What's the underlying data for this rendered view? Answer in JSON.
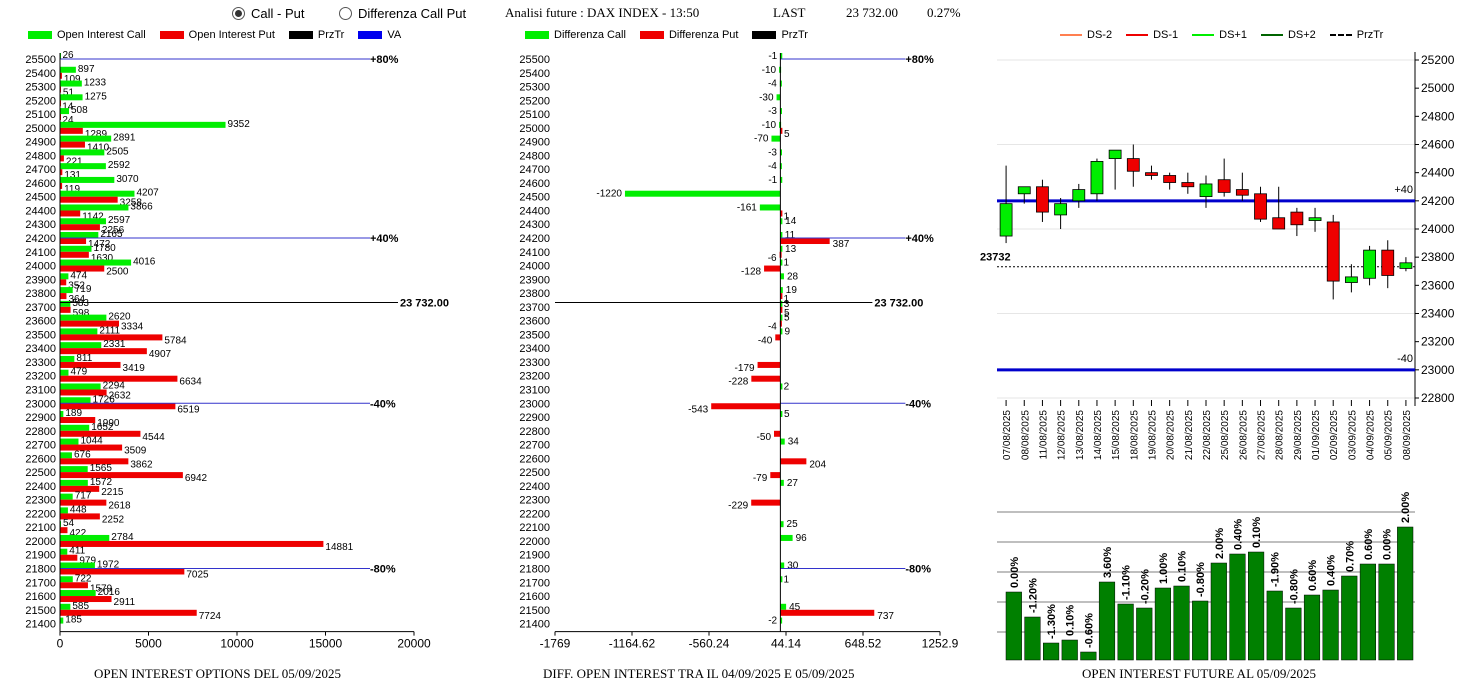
{
  "header": {
    "radio_call_put": "Call - Put",
    "radio_diff": "Differenza Call Put",
    "title": "Analisi future : DAX INDEX - 13:50",
    "last_label": "LAST",
    "last_value": "23 732.00",
    "change": "0.27%"
  },
  "legend1": {
    "call": "Open Interest Call",
    "put": "Open Interest Put",
    "prztr": "PrzTr",
    "va": "VA"
  },
  "legend2": {
    "call": "Differenza Call",
    "put": "Differenza Put",
    "prztr": "PrzTr"
  },
  "legend3": {
    "ds_2": "DS-2",
    "ds_1": "DS-1",
    "ds1": "DS+1",
    "ds2": "DS+2",
    "prztr": "PrzTr"
  },
  "captions": {
    "oi": "OPEN INTEREST OPTIONS DEL 05/09/2025",
    "diff": "DIFF. OPEN INTEREST TRA IL 04/09/2025 E 05/09/2025",
    "future": "OPEN INTEREST FUTURE AL 05/09/2025"
  },
  "chart_data": [
    {
      "type": "bar",
      "orientation": "horizontal",
      "strikes": [
        25500,
        25400,
        25300,
        25200,
        25100,
        25000,
        24900,
        24800,
        24700,
        24600,
        24500,
        24400,
        24300,
        24200,
        24100,
        24000,
        23900,
        23800,
        23700,
        23600,
        23500,
        23400,
        23300,
        23200,
        23100,
        23000,
        22900,
        22800,
        22700,
        22600,
        22500,
        22400,
        22300,
        22200,
        22100,
        22000,
        21900,
        21800,
        21700,
        21600,
        21500,
        21400
      ],
      "series": [
        {
          "name": "Open Interest Call",
          "color": "#00ee00",
          "values": [
            26,
            897,
            1233,
            1275,
            508,
            9352,
            2891,
            2505,
            2592,
            3070,
            4207,
            3866,
            2597,
            2165,
            1780,
            4016,
            474,
            719,
            583,
            2620,
            2111,
            2331,
            811,
            479,
            2294,
            1726,
            189,
            1652,
            1044,
            676,
            1565,
            1572,
            717,
            448,
            54,
            2784,
            411,
            1972,
            722,
            2016,
            585,
            185
          ]
        },
        {
          "name": "Open Interest Put",
          "color": "#ee0000",
          "values": [
            0,
            109,
            51,
            14,
            24,
            1289,
            1410,
            221,
            131,
            119,
            3258,
            1142,
            2256,
            1472,
            1630,
            2500,
            352,
            364,
            598,
            3334,
            5784,
            4907,
            3419,
            6634,
            2632,
            6519,
            1990,
            4544,
            3509,
            3862,
            6942,
            2215,
            2618,
            2252,
            422,
            14881,
            979,
            7025,
            1579,
            2911,
            7724,
            0
          ]
        }
      ],
      "price_line": {
        "value": 23732,
        "label": "23 732.00"
      },
      "levels": [
        {
          "strike": 25500,
          "label": "+80%"
        },
        {
          "strike": 24200,
          "label": "+40%"
        },
        {
          "strike": 23000,
          "label": "-40%"
        },
        {
          "strike": 21800,
          "label": "-80%"
        }
      ],
      "xticks": [
        0,
        5000,
        10000,
        15000,
        20000
      ],
      "xlim": [
        0,
        20000
      ]
    },
    {
      "type": "bar",
      "orientation": "horizontal",
      "strikes": [
        25500,
        25400,
        25300,
        25200,
        25100,
        25000,
        24900,
        24800,
        24700,
        24600,
        24500,
        24400,
        24300,
        24200,
        24100,
        24000,
        23900,
        23800,
        23700,
        23600,
        23500,
        23400,
        23300,
        23200,
        23100,
        23000,
        22900,
        22800,
        22700,
        22600,
        22500,
        22400,
        22300,
        22200,
        22100,
        22000,
        21900,
        21800,
        21700,
        21600,
        21500,
        21400
      ],
      "series": [
        {
          "name": "Differenza Call",
          "color": "#00ee00",
          "values": [
            -1,
            -10,
            -4,
            -30,
            -3,
            -10,
            -70,
            -3,
            -4,
            -1,
            -1220,
            -161,
            14,
            11,
            13,
            1,
            28,
            19,
            3,
            5,
            9,
            0,
            0,
            0,
            2,
            0,
            5,
            0,
            34,
            0,
            0,
            27,
            0,
            0,
            25,
            96,
            0,
            30,
            1,
            0,
            45,
            -2
          ]
        },
        {
          "name": "Differenza Put",
          "color": "#ee0000",
          "values": [
            0,
            0,
            0,
            0,
            0,
            5,
            0,
            0,
            0,
            0,
            0,
            1,
            0,
            387,
            -6,
            -128,
            0,
            1,
            5,
            -4,
            -40,
            0,
            -179,
            -228,
            0,
            -543,
            0,
            -50,
            0,
            204,
            -79,
            0,
            -229,
            0,
            0,
            0,
            0,
            0,
            0,
            0,
            737,
            0
          ]
        }
      ],
      "price_line": {
        "value": 23732,
        "label": "23 732.00"
      },
      "levels": [
        {
          "strike": 25500,
          "label": "+80%"
        },
        {
          "strike": 24200,
          "label": "+40%"
        },
        {
          "strike": 23000,
          "label": "-40%"
        },
        {
          "strike": 21800,
          "label": "-80%"
        }
      ],
      "xticks": [
        "-1769",
        "-1164.62",
        "-560.24",
        "44.14",
        "648.52",
        "1252.9"
      ],
      "xlim": [
        -1769,
        1252.9
      ]
    },
    {
      "type": "candlestick",
      "dates": [
        "07/08/2025",
        "08/08/2025",
        "11/08/2025",
        "12/08/2025",
        "13/08/2025",
        "14/08/2025",
        "15/08/2025",
        "18/08/2025",
        "19/08/2025",
        "20/08/2025",
        "21/08/2025",
        "22/08/2025",
        "25/08/2025",
        "26/08/2025",
        "27/08/2025",
        "28/08/2025",
        "29/08/2025",
        "01/09/2025",
        "02/09/2025",
        "03/09/2025",
        "04/09/2025",
        "05/09/2025",
        "08/09/2025"
      ],
      "open": [
        23950,
        24250,
        24300,
        24100,
        24200,
        24250,
        24500,
        24500,
        24400,
        24380,
        24330,
        24230,
        24350,
        24280,
        24250,
        24080,
        24120,
        24060,
        24050,
        23620,
        23650,
        23850,
        23720
      ],
      "high": [
        24450,
        24300,
        24350,
        24220,
        24320,
        24500,
        24550,
        24600,
        24450,
        24400,
        24400,
        24380,
        24500,
        24400,
        24300,
        24300,
        24150,
        24150,
        24100,
        23750,
        23880,
        23920,
        23800
      ],
      "low": [
        23900,
        24180,
        24050,
        24000,
        24150,
        24200,
        24280,
        24300,
        24350,
        24280,
        24250,
        24150,
        24230,
        24200,
        24050,
        24000,
        23950,
        23980,
        23500,
        23550,
        23600,
        23580,
        23700
      ],
      "close": [
        24180,
        24300,
        24120,
        24180,
        24280,
        24480,
        24560,
        24410,
        24380,
        24330,
        24300,
        24320,
        24260,
        24240,
        24070,
        24000,
        24030,
        24080,
        23630,
        23660,
        23850,
        23670,
        23760
      ],
      "yticks": [
        25200,
        25000,
        24800,
        24600,
        24400,
        24200,
        24000,
        23800,
        23600,
        23400,
        23200,
        23000,
        22800
      ],
      "ylim": [
        22800,
        25250
      ],
      "bands": [
        {
          "value": 24200,
          "label": "+40"
        },
        {
          "value": 23000,
          "label": "-40"
        }
      ],
      "price_line": {
        "value": 23732,
        "label": "23732"
      }
    },
    {
      "type": "bar",
      "values": [
        0.0,
        -1.2,
        -1.3,
        0.1,
        -0.6,
        3.6,
        -1.1,
        -0.2,
        1.0,
        0.1,
        -0.8,
        2.0,
        0.4,
        0.1,
        -1.9,
        -0.8,
        0.6,
        0.4,
        0.7,
        0.6,
        0.0,
        2.0
      ],
      "labels": [
        "0.00%",
        "-1.20%",
        "-1.30%",
        "0.10%",
        "-0.60%",
        "3.60%",
        "-1.10%",
        "-0.20%",
        "1.00%",
        "0.10%",
        "-0.80%",
        "2.00%",
        "0.40%",
        "0.10%",
        "-1.90%",
        "-0.80%",
        "0.60%",
        "0.40%",
        "0.70%",
        "0.60%",
        "0.00%",
        "2.00%"
      ],
      "bar_heights": [
        68,
        43,
        17,
        20,
        8,
        78,
        56,
        52,
        72,
        74,
        59,
        97,
        106,
        108,
        69,
        52,
        65,
        70,
        84,
        96,
        96,
        133
      ],
      "color": "#008000"
    }
  ]
}
